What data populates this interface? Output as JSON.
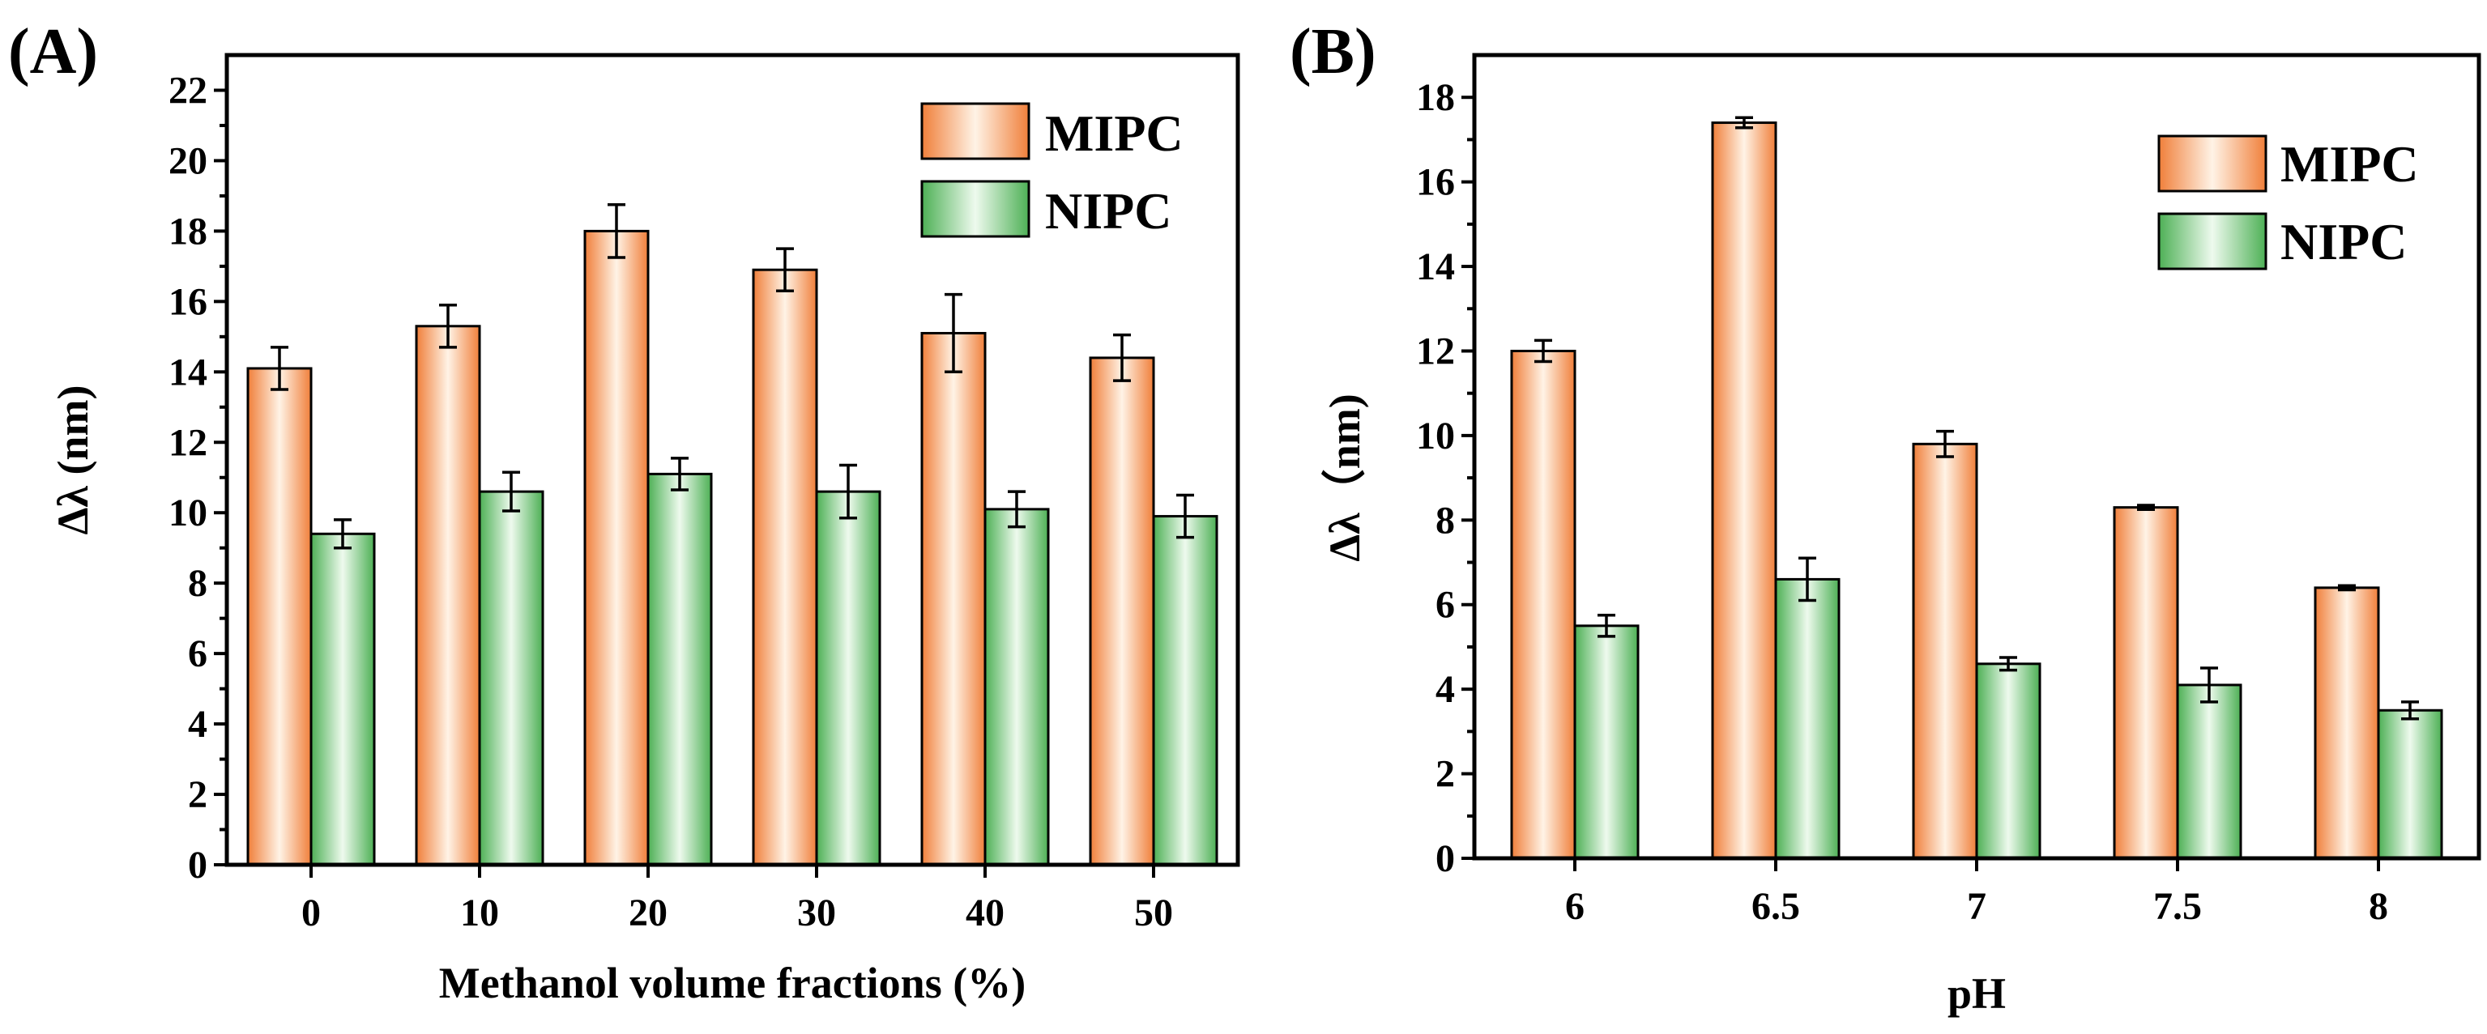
{
  "chart_data": [
    {
      "type": "bar",
      "panel_label": "(A)",
      "xlabel": "Methanol volume fractions (%)",
      "ylabel": "Δλ (nm)",
      "ylim": [
        0,
        23
      ],
      "yticks": [
        0,
        2,
        4,
        6,
        8,
        10,
        12,
        14,
        16,
        18,
        20,
        22
      ],
      "ytick_labels": [
        "0",
        "2",
        "4",
        "6",
        "8",
        "10",
        "12",
        "14",
        "16",
        "18",
        "20",
        "22"
      ],
      "categories": [
        "0",
        "10",
        "20",
        "30",
        "40",
        "50"
      ],
      "series": [
        {
          "name": "MIPC",
          "values": [
            14.1,
            15.3,
            18.0,
            16.9,
            15.1,
            14.4
          ],
          "errors": [
            0.6,
            0.6,
            0.75,
            0.6,
            1.1,
            0.65
          ]
        },
        {
          "name": "NIPC",
          "values": [
            9.4,
            10.6,
            11.1,
            10.6,
            10.1,
            9.9
          ],
          "errors": [
            0.4,
            0.55,
            0.45,
            0.75,
            0.5,
            0.6
          ]
        }
      ],
      "legend": [
        "MIPC",
        "NIPC"
      ],
      "legend_position": "top-right",
      "grid": false
    },
    {
      "type": "bar",
      "panel_label": "(B)",
      "xlabel": "pH",
      "ylabel": "Δλ（nm)",
      "ylim": [
        0,
        19
      ],
      "yticks": [
        0,
        2,
        4,
        6,
        8,
        10,
        12,
        14,
        16,
        18
      ],
      "ytick_labels": [
        "0",
        "2",
        "4",
        "6",
        "8",
        "10",
        "12",
        "14",
        "16",
        "18"
      ],
      "categories": [
        "6",
        "6.5",
        "7",
        "7.5",
        "8"
      ],
      "series": [
        {
          "name": "MIPC",
          "values": [
            12.0,
            17.4,
            9.8,
            8.3,
            6.4
          ],
          "errors": [
            0.25,
            0.12,
            0.3,
            0.05,
            0.05
          ]
        },
        {
          "name": "NIPC",
          "values": [
            5.5,
            6.6,
            4.6,
            4.1,
            3.5
          ],
          "errors": [
            0.25,
            0.5,
            0.15,
            0.4,
            0.2
          ]
        }
      ],
      "legend": [
        "MIPC",
        "NIPC"
      ],
      "legend_position": "top-right",
      "grid": false
    }
  ],
  "colors": {
    "mipc_edge": "#f07f3a",
    "mipc_center": "#fff3e6",
    "nipc_edge": "#4db055",
    "nipc_center": "#eefaee",
    "axis": "#000000"
  }
}
